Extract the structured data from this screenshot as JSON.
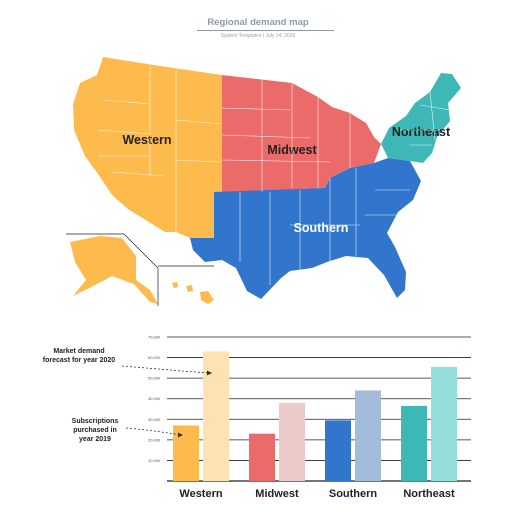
{
  "header": {
    "title": "Regional demand map",
    "subtitle": "System Templates  |  July 14, 2025"
  },
  "map": {
    "regions": [
      {
        "name": "Western",
        "color": "#FDBA4D",
        "label_color": "#222222"
      },
      {
        "name": "Midwest",
        "color": "#EB6B6B",
        "label_color": "#222222"
      },
      {
        "name": "Southern",
        "color": "#3176CC",
        "label_color": "#ffffff"
      },
      {
        "name": "Northeast",
        "color": "#3EB8B6",
        "label_color": "#222222"
      }
    ]
  },
  "chart_data": {
    "type": "bar",
    "categories": [
      "Western",
      "Midwest",
      "Southern",
      "Northeast"
    ],
    "series": [
      {
        "values": [
          27000,
          23000,
          29500,
          36500
        ],
        "colors": [
          "#FDBA4D",
          "#EB6B6B",
          "#3176CC",
          "#3EB8B6"
        ]
      },
      {
        "values": [
          63000,
          38000,
          44000,
          55500
        ],
        "colors": [
          "#FFE2B3",
          "#EDCACA",
          "#A3BCDB",
          "#93DEDA"
        ]
      }
    ],
    "ylim": [
      0,
      70000
    ],
    "yticks": [
      10000,
      20000,
      30000,
      40000,
      50000,
      60000,
      70000
    ],
    "ytick_labels": [
      "10,000",
      "20,000",
      "30,000",
      "40,000",
      "50,000",
      "60,000",
      "70,000"
    ],
    "grid": true,
    "annotations": [
      {
        "lines": [
          "Market demand",
          "forecast for year 2020"
        ]
      },
      {
        "lines": [
          "Subscriptions",
          "purchased in",
          "year 2019"
        ]
      }
    ]
  }
}
